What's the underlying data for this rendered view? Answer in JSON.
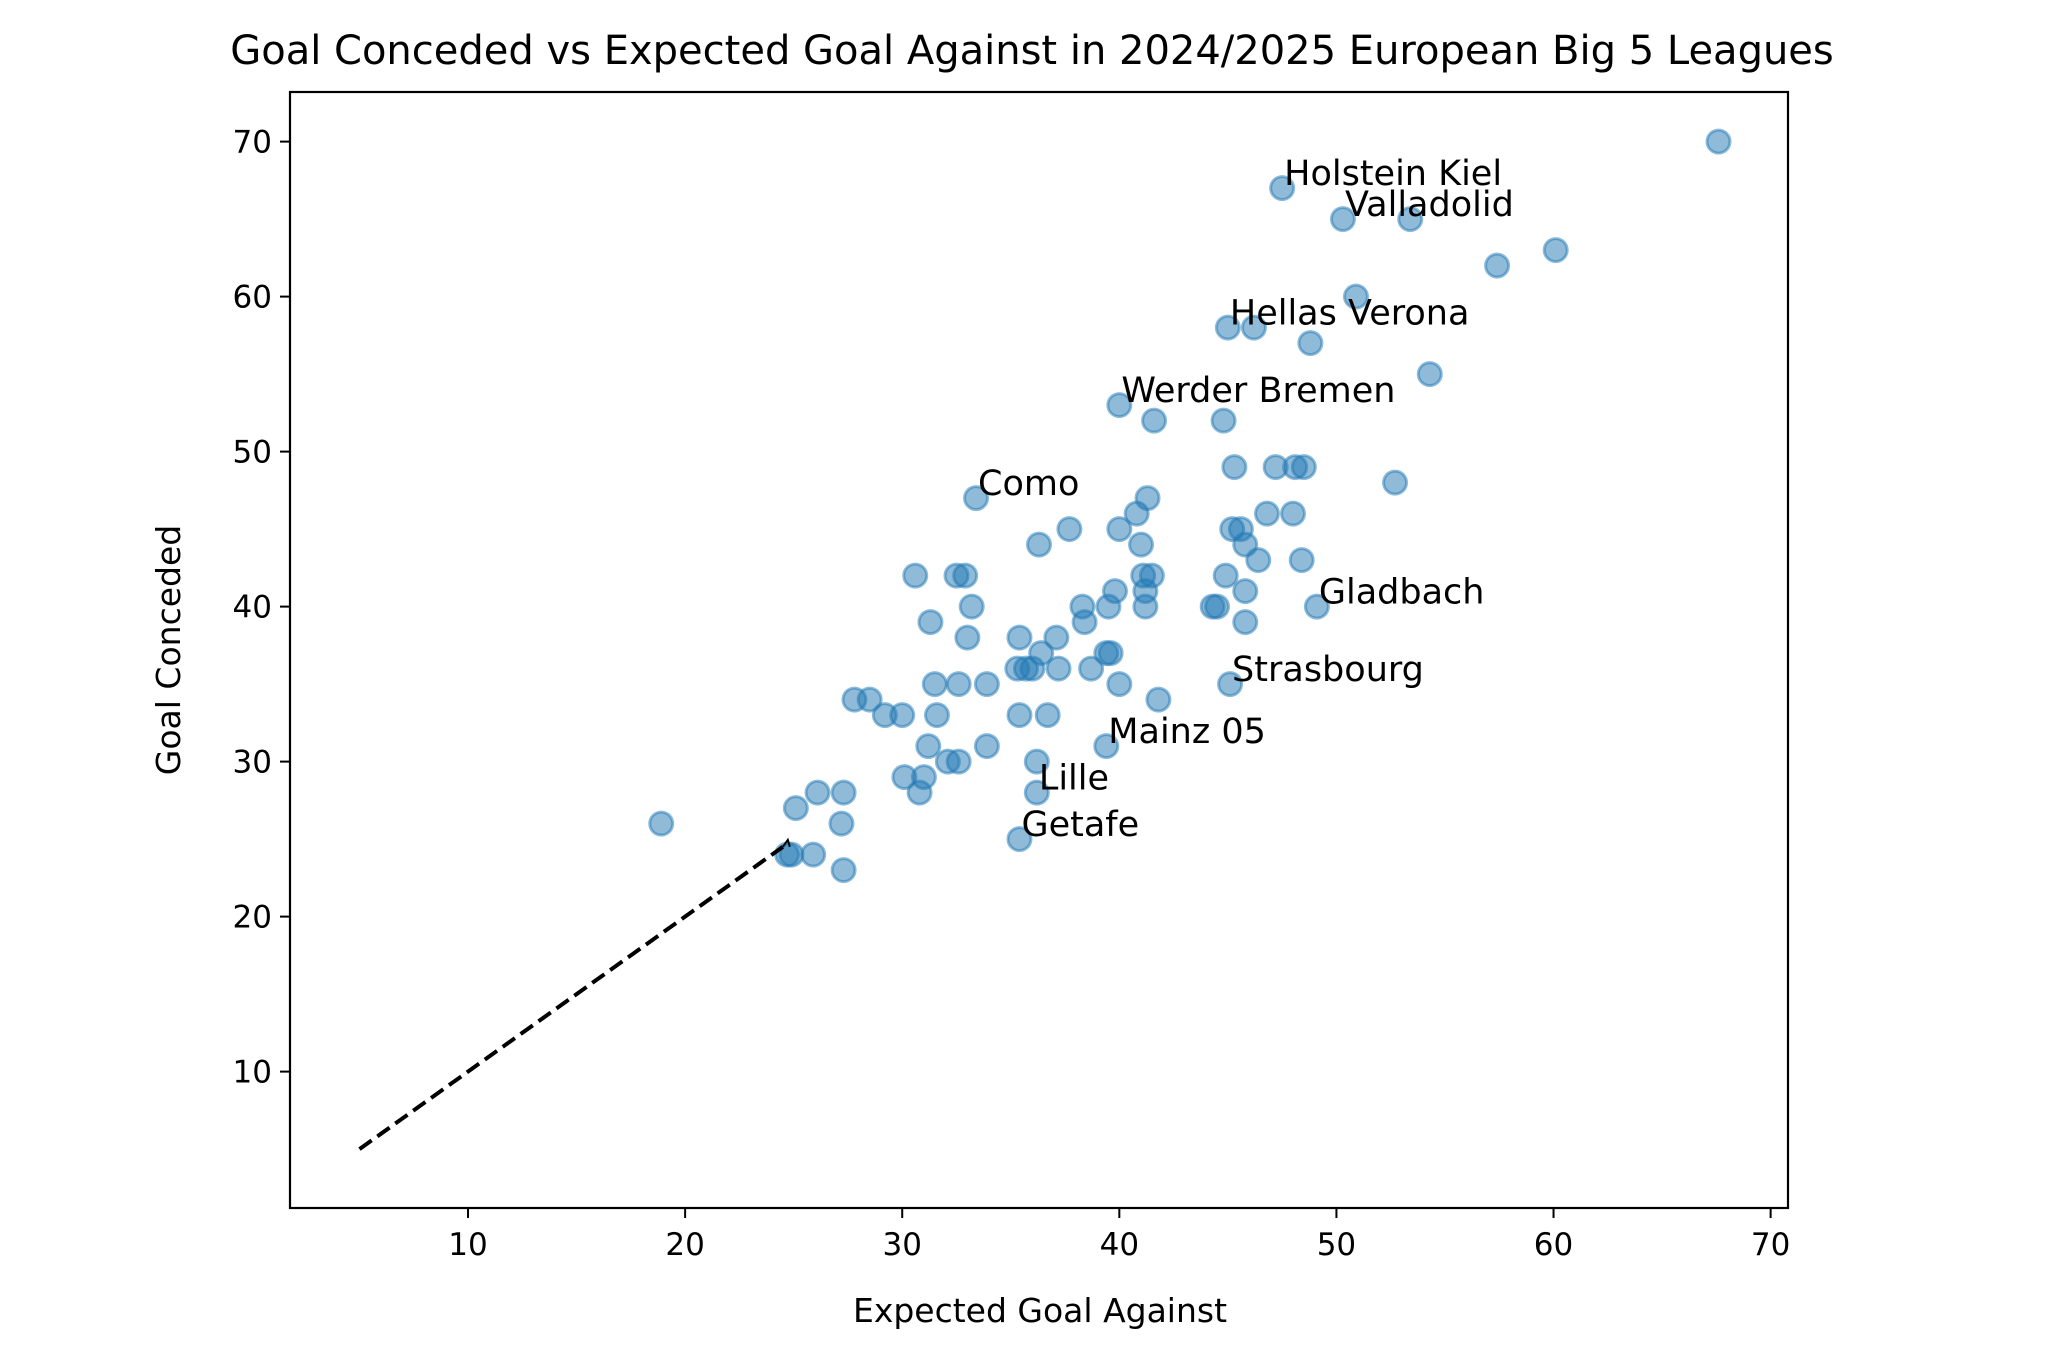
{
  "chart_data": {
    "type": "scatter",
    "title": "Goal Conceded vs Expected Goal Against in 2024/2025 European Big 5 Leagues",
    "xlabel": "Expected Goal Against",
    "ylabel": "Goal Conceded",
    "xlim": [
      1.8,
      70.8
    ],
    "ylim": [
      1.2,
      73.2
    ],
    "xticks": [
      10,
      20,
      30,
      40,
      50,
      60,
      70
    ],
    "yticks": [
      10,
      20,
      30,
      40,
      50,
      60,
      70
    ],
    "grid": false,
    "point_color": "#1f77b4",
    "point_alpha": 0.5,
    "reference_line": {
      "style": "dashed",
      "color": "#000000",
      "x": [
        5,
        24.5
      ],
      "y": [
        5,
        24.5
      ]
    },
    "points": [
      {
        "x": 67.6,
        "y": 70
      },
      {
        "x": 47.5,
        "y": 67
      },
      {
        "x": 50.3,
        "y": 65
      },
      {
        "x": 53.4,
        "y": 65
      },
      {
        "x": 60.1,
        "y": 63
      },
      {
        "x": 57.4,
        "y": 62
      },
      {
        "x": 50.9,
        "y": 60
      },
      {
        "x": 45.0,
        "y": 58
      },
      {
        "x": 46.2,
        "y": 58
      },
      {
        "x": 48.8,
        "y": 57
      },
      {
        "x": 54.3,
        "y": 55
      },
      {
        "x": 40.0,
        "y": 53
      },
      {
        "x": 41.6,
        "y": 52
      },
      {
        "x": 44.8,
        "y": 52
      },
      {
        "x": 45.3,
        "y": 49
      },
      {
        "x": 47.2,
        "y": 49
      },
      {
        "x": 48.1,
        "y": 49
      },
      {
        "x": 48.5,
        "y": 49
      },
      {
        "x": 52.7,
        "y": 48
      },
      {
        "x": 33.4,
        "y": 47
      },
      {
        "x": 41.3,
        "y": 47
      },
      {
        "x": 40.8,
        "y": 46
      },
      {
        "x": 46.8,
        "y": 46
      },
      {
        "x": 48.0,
        "y": 46
      },
      {
        "x": 37.7,
        "y": 45
      },
      {
        "x": 40.0,
        "y": 45
      },
      {
        "x": 45.2,
        "y": 45
      },
      {
        "x": 45.6,
        "y": 45
      },
      {
        "x": 36.3,
        "y": 44
      },
      {
        "x": 41.0,
        "y": 44
      },
      {
        "x": 45.8,
        "y": 44
      },
      {
        "x": 46.4,
        "y": 43
      },
      {
        "x": 48.4,
        "y": 43
      },
      {
        "x": 30.6,
        "y": 42
      },
      {
        "x": 32.5,
        "y": 42
      },
      {
        "x": 32.9,
        "y": 42
      },
      {
        "x": 41.1,
        "y": 42
      },
      {
        "x": 41.5,
        "y": 42
      },
      {
        "x": 44.9,
        "y": 42
      },
      {
        "x": 39.8,
        "y": 41
      },
      {
        "x": 41.2,
        "y": 41
      },
      {
        "x": 45.8,
        "y": 41
      },
      {
        "x": 33.2,
        "y": 40
      },
      {
        "x": 38.3,
        "y": 40
      },
      {
        "x": 39.5,
        "y": 40
      },
      {
        "x": 41.2,
        "y": 40
      },
      {
        "x": 44.3,
        "y": 40
      },
      {
        "x": 44.5,
        "y": 40
      },
      {
        "x": 49.1,
        "y": 40
      },
      {
        "x": 31.3,
        "y": 39
      },
      {
        "x": 38.4,
        "y": 39
      },
      {
        "x": 45.8,
        "y": 39
      },
      {
        "x": 33.0,
        "y": 38
      },
      {
        "x": 35.4,
        "y": 38
      },
      {
        "x": 37.1,
        "y": 38
      },
      {
        "x": 36.4,
        "y": 37
      },
      {
        "x": 39.4,
        "y": 37
      },
      {
        "x": 39.6,
        "y": 37
      },
      {
        "x": 35.3,
        "y": 36
      },
      {
        "x": 35.7,
        "y": 36
      },
      {
        "x": 36.0,
        "y": 36
      },
      {
        "x": 37.2,
        "y": 36
      },
      {
        "x": 38.7,
        "y": 36
      },
      {
        "x": 31.5,
        "y": 35
      },
      {
        "x": 32.6,
        "y": 35
      },
      {
        "x": 33.9,
        "y": 35
      },
      {
        "x": 40.0,
        "y": 35
      },
      {
        "x": 45.1,
        "y": 35
      },
      {
        "x": 27.8,
        "y": 34
      },
      {
        "x": 28.5,
        "y": 34
      },
      {
        "x": 41.8,
        "y": 34
      },
      {
        "x": 29.2,
        "y": 33
      },
      {
        "x": 30.0,
        "y": 33
      },
      {
        "x": 31.6,
        "y": 33
      },
      {
        "x": 35.4,
        "y": 33
      },
      {
        "x": 36.7,
        "y": 33
      },
      {
        "x": 31.2,
        "y": 31
      },
      {
        "x": 33.9,
        "y": 31
      },
      {
        "x": 39.4,
        "y": 31
      },
      {
        "x": 32.1,
        "y": 30
      },
      {
        "x": 32.6,
        "y": 30
      },
      {
        "x": 36.2,
        "y": 30
      },
      {
        "x": 30.1,
        "y": 29
      },
      {
        "x": 31.0,
        "y": 29
      },
      {
        "x": 26.1,
        "y": 28
      },
      {
        "x": 27.3,
        "y": 28
      },
      {
        "x": 30.8,
        "y": 28
      },
      {
        "x": 36.2,
        "y": 28
      },
      {
        "x": 25.1,
        "y": 27
      },
      {
        "x": 18.9,
        "y": 26
      },
      {
        "x": 27.2,
        "y": 26
      },
      {
        "x": 35.4,
        "y": 25
      },
      {
        "x": 24.7,
        "y": 24
      },
      {
        "x": 24.9,
        "y": 24
      },
      {
        "x": 25.9,
        "y": 24
      },
      {
        "x": 27.3,
        "y": 23
      }
    ],
    "annotations": [
      {
        "text": "Holstein Kiel",
        "x": 47.5,
        "y": 67
      },
      {
        "text": "Valladolid",
        "x": 50.3,
        "y": 65
      },
      {
        "text": "Hellas Verona",
        "x": 45.0,
        "y": 58
      },
      {
        "text": "Werder Bremen",
        "x": 40.0,
        "y": 53
      },
      {
        "text": "Como",
        "x": 33.4,
        "y": 47
      },
      {
        "text": "Gladbach",
        "x": 49.1,
        "y": 40
      },
      {
        "text": "Strasbourg",
        "x": 45.1,
        "y": 35
      },
      {
        "text": "Mainz 05",
        "x": 39.4,
        "y": 31
      },
      {
        "text": "Lille",
        "x": 36.2,
        "y": 28
      },
      {
        "text": "Getafe",
        "x": 35.4,
        "y": 25
      }
    ]
  }
}
